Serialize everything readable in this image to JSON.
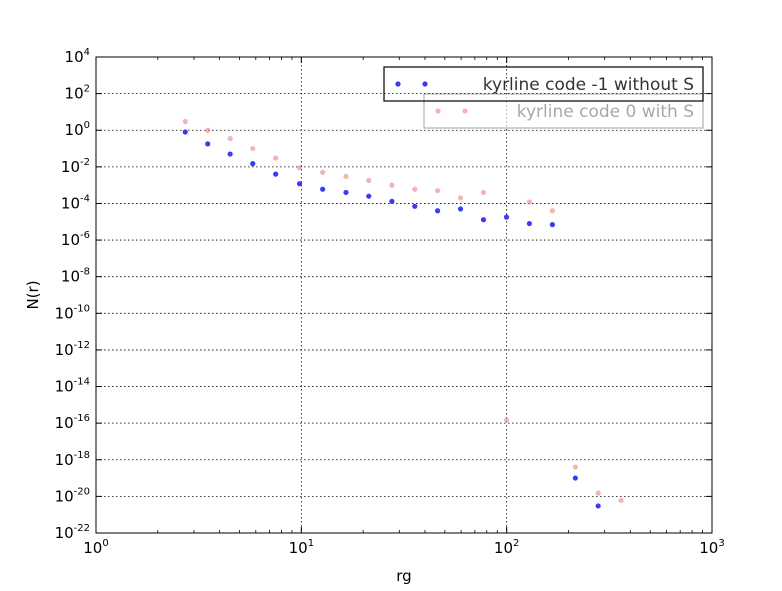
{
  "chart_data": {
    "type": "scatter",
    "title": "",
    "xlabel": "rg",
    "ylabel": "N(r)",
    "xscale": "log",
    "yscale": "log",
    "xlim": [
      1,
      1000
    ],
    "ylim": [
      1e-22,
      10000.0
    ],
    "grid": true,
    "legend_position": "top-right",
    "x_ticks": [
      {
        "base": "10",
        "exp": "0",
        "value": 1
      },
      {
        "base": "10",
        "exp": "1",
        "value": 10
      },
      {
        "base": "10",
        "exp": "2",
        "value": 100
      },
      {
        "base": "10",
        "exp": "3",
        "value": 1000
      }
    ],
    "y_ticks": [
      {
        "base": "10",
        "exp": "4",
        "value": 10000.0
      },
      {
        "base": "10",
        "exp": "2",
        "value": 100.0
      },
      {
        "base": "10",
        "exp": "0",
        "value": 1.0
      },
      {
        "base": "10",
        "exp": "-2",
        "value": 0.01
      },
      {
        "base": "10",
        "exp": "-4",
        "value": 0.0001
      },
      {
        "base": "10",
        "exp": "-6",
        "value": 1e-06
      },
      {
        "base": "10",
        "exp": "-8",
        "value": 1e-08
      },
      {
        "base": "10",
        "exp": "-10",
        "value": 1e-10
      },
      {
        "base": "10",
        "exp": "-12",
        "value": 1e-12
      },
      {
        "base": "10",
        "exp": "-14",
        "value": 1e-14
      },
      {
        "base": "10",
        "exp": "-16",
        "value": 1e-16
      },
      {
        "base": "10",
        "exp": "-18",
        "value": 1e-18
      },
      {
        "base": "10",
        "exp": "-20",
        "value": 1e-20
      },
      {
        "base": "10",
        "exp": "-22",
        "value": 1e-22
      }
    ],
    "series": [
      {
        "name": "kyrline code -1 without S",
        "color": "#3b3bf5",
        "alpha": 1.0,
        "x": [
          2.72,
          3.5,
          4.5,
          5.8,
          7.5,
          9.8,
          12.7,
          16.5,
          21.3,
          27.6,
          35.7,
          46.1,
          59.6,
          77.1,
          99.8,
          129,
          167,
          216,
          279
        ],
        "y": [
          0.8,
          0.18,
          0.05,
          0.015,
          0.004,
          0.0012,
          0.0006,
          0.0004,
          0.00025,
          0.00013,
          7e-05,
          4e-05,
          5e-05,
          1.3e-05,
          1.8e-05,
          8e-06,
          7e-06,
          1e-19,
          3e-21
        ]
      },
      {
        "name": "kyrline code 0 with S",
        "color": "#f08080",
        "alpha": 0.6,
        "x": [
          2.72,
          3.5,
          4.5,
          5.8,
          7.5,
          9.8,
          12.7,
          16.5,
          21.3,
          27.6,
          35.7,
          46.1,
          59.6,
          77.1,
          99.8,
          129,
          167,
          216,
          279,
          361
        ],
        "y": [
          3.0,
          1.0,
          0.35,
          0.1,
          0.03,
          0.009,
          0.005,
          0.003,
          0.0018,
          0.001,
          0.0006,
          0.0005,
          0.0002,
          0.0004,
          1.5e-16,
          0.00012,
          4e-05,
          4e-19,
          1.5e-20,
          6e-21
        ]
      }
    ]
  }
}
